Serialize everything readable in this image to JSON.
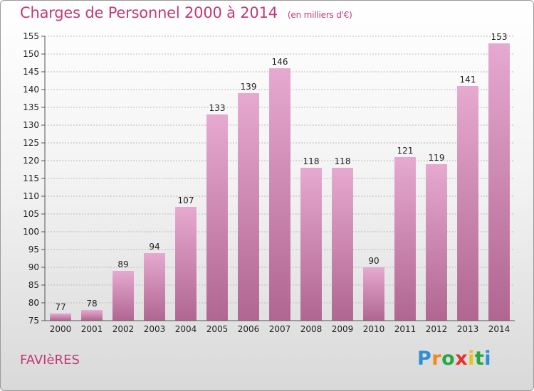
{
  "title": "Charges de Personnel 2000 à 2014",
  "subtitle": "(en milliers d'€)",
  "location": "FAVIèRES",
  "logo": {
    "letters": [
      "P",
      "r",
      "o",
      "x",
      "i",
      "t",
      "i"
    ],
    "colors": [
      "#2d8fd6",
      "#f08a1c",
      "#27a83f",
      "#e6322e",
      "#e9c21f",
      "#27a83f",
      "#2d8fd6"
    ]
  },
  "colors": {
    "accent": "#c03a78",
    "bar_top": "#e6a9d0",
    "bar_bottom": "#b06690"
  },
  "chart_data": {
    "type": "bar",
    "title": "Charges de Personnel 2000 à 2014",
    "subtitle": "(en milliers d'€)",
    "categories": [
      "2000",
      "2001",
      "2002",
      "2003",
      "2004",
      "2005",
      "2006",
      "2007",
      "2008",
      "2009",
      "2010",
      "2011",
      "2012",
      "2013",
      "2014"
    ],
    "values": [
      77,
      78,
      89,
      94,
      107,
      133,
      139,
      146,
      118,
      118,
      90,
      121,
      119,
      141,
      153
    ],
    "ylim": [
      75,
      155
    ],
    "yticks": [
      75,
      80,
      85,
      90,
      95,
      100,
      105,
      110,
      115,
      120,
      125,
      130,
      135,
      140,
      145,
      150,
      155
    ],
    "grid": true,
    "data_labels": true
  }
}
